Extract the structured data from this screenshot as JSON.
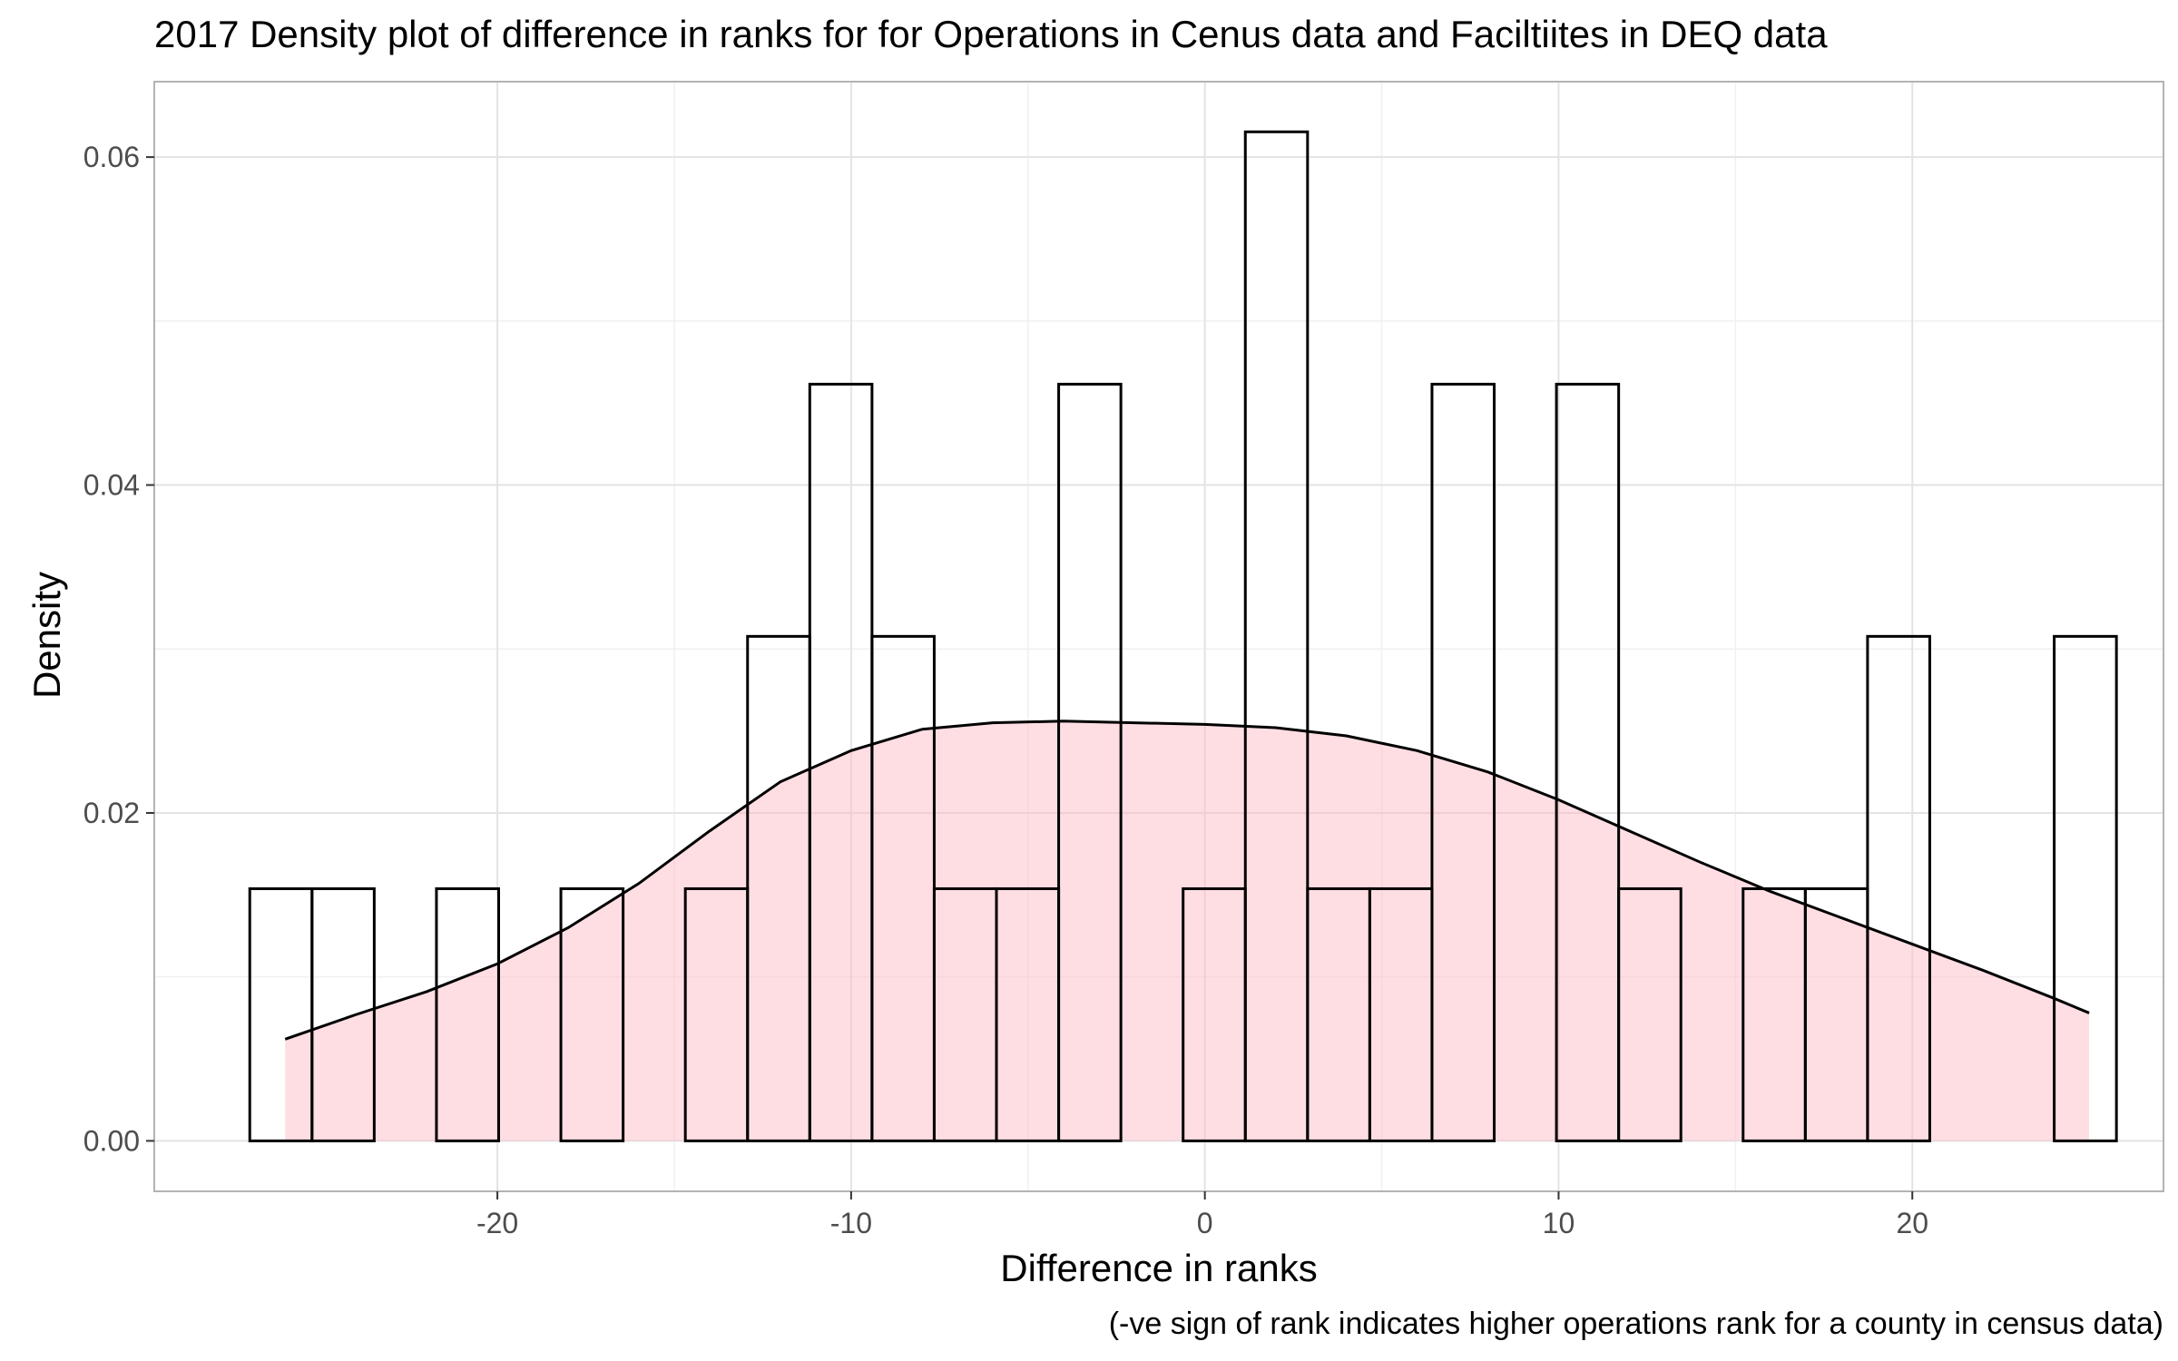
{
  "chart_data": {
    "type": "histogram",
    "title": "2017 Density plot of difference in ranks for for Operations in Cenus data and Faciltiites in DEQ data",
    "xlabel": "Difference in ranks",
    "ylabel": "Density",
    "caption": "(-ve sign of rank indicates higher operations rank for a county in census data)",
    "xlim": [
      -29.7,
      27.1
    ],
    "ylim": [
      -0.003077,
      0.0646
    ],
    "x_ticks": [
      -20,
      -10,
      0,
      10,
      20
    ],
    "x_tick_labels": [
      "-20",
      "-10",
      "0",
      "10",
      "20"
    ],
    "y_ticks": [
      0,
      0.02,
      0.04,
      0.06
    ],
    "y_tick_labels": [
      "0.00",
      "0.02",
      "0.04",
      "0.06"
    ],
    "grid": true,
    "histogram": {
      "bin_width": 1.759,
      "bin_start": -27.0,
      "densities": [
        0.01538,
        0.01538,
        0,
        0.01538,
        0,
        0.01538,
        0,
        0.01538,
        0.03077,
        0.04615,
        0.03077,
        0.01538,
        0.01538,
        0.04615,
        0,
        0.01538,
        0.06154,
        0.01538,
        0.01538,
        0.04615,
        0,
        0.04615,
        0.01538,
        0,
        0.01538,
        0.01538,
        0.03077,
        0,
        0,
        0.03077
      ],
      "fill": "#ffffff",
      "outline": "#000000"
    },
    "density_curve": {
      "fill": "#ffb6c1",
      "fill_opacity": 0.45,
      "line_color": "#000000",
      "x": [
        -26,
        -24,
        -22,
        -20,
        -18,
        -16,
        -14,
        -12,
        -10,
        -8,
        -6,
        -4,
        -2,
        0,
        2,
        4,
        6,
        8,
        10,
        12,
        14,
        16,
        18,
        20,
        22,
        24,
        25
      ],
      "y": [
        0.0062,
        0.0077,
        0.0091,
        0.0108,
        0.013,
        0.0157,
        0.0189,
        0.0219,
        0.0238,
        0.0251,
        0.0255,
        0.0256,
        0.0255,
        0.0254,
        0.0252,
        0.0247,
        0.0238,
        0.0225,
        0.0208,
        0.0189,
        0.017,
        0.0152,
        0.0136,
        0.012,
        0.0104,
        0.0087,
        0.0078
      ]
    }
  }
}
